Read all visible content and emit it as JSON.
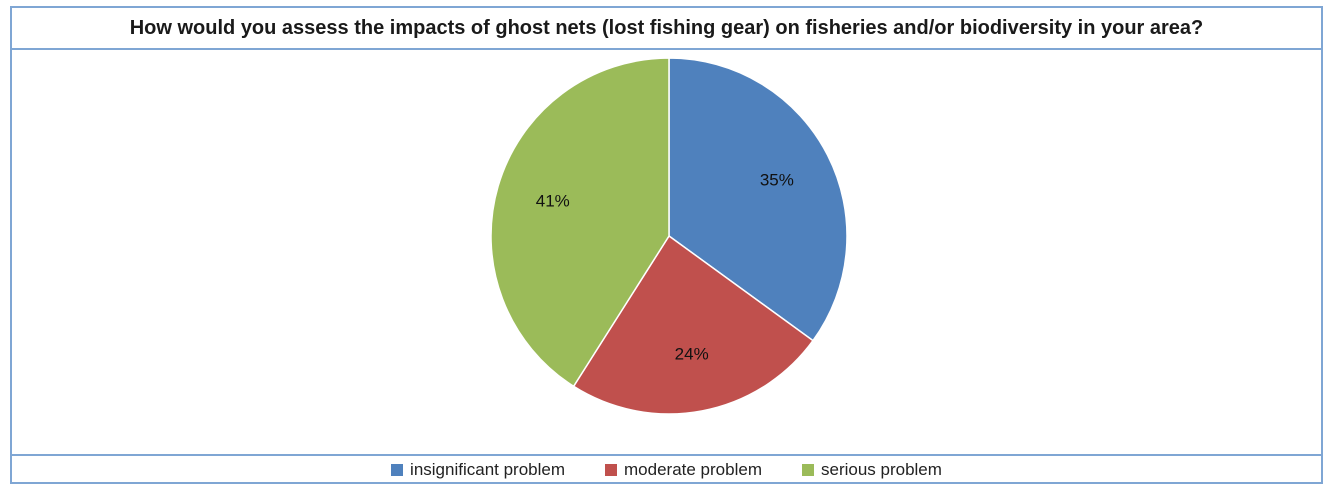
{
  "chart_data": {
    "type": "pie",
    "title": "How would you assess the impacts of ghost nets (lost fishing gear) on fisheries and/or biodiversity in your area?",
    "slices": [
      {
        "label": "insignificant problem",
        "value": 35,
        "data_label": "35%",
        "color": "#4f81bd"
      },
      {
        "label": "moderate problem",
        "value": 24,
        "data_label": "24%",
        "color": "#c0504d"
      },
      {
        "label": "serious problem",
        "value": 41,
        "data_label": "41%",
        "color": "#9bbb59"
      }
    ],
    "legend_position": "bottom"
  }
}
